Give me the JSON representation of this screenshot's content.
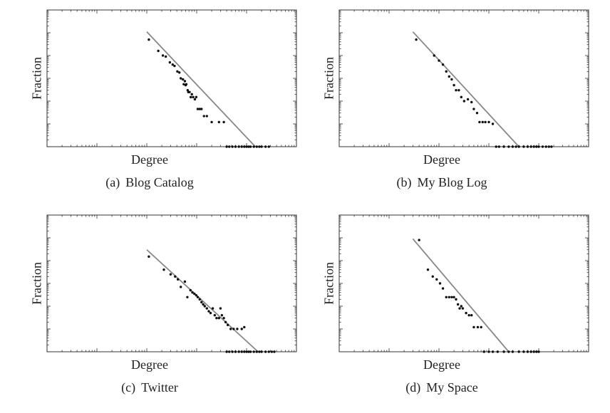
{
  "chart_data": [
    {
      "type": "scatter",
      "caption_tag": "(a)",
      "caption_name": "Blog Catalog",
      "xlabel": "Degree",
      "ylabel": "Fraction",
      "log_x": true,
      "log_y": true,
      "xlim": [
        0.1,
        10000
      ],
      "ylim": [
        1e-05,
        10
      ],
      "grid": false,
      "fit_line": {
        "x": [
          10,
          1500
        ],
        "y": [
          1.1,
          1e-05
        ]
      },
      "points": {
        "x": [
          11,
          17,
          21,
          24,
          29,
          33,
          36,
          41,
          45,
          48,
          53,
          55,
          58,
          60,
          62,
          66,
          68,
          72,
          76,
          80,
          85,
          92,
          98,
          105,
          115,
          125,
          140,
          160,
          200,
          280,
          350,
          400,
          450,
          520,
          600,
          700,
          800,
          900,
          1000,
          1100,
          1200,
          1400,
          1600,
          1800,
          2000,
          2400,
          2800
        ],
        "y": [
          0.5,
          0.16,
          0.1,
          0.09,
          0.05,
          0.04,
          0.035,
          0.02,
          0.018,
          0.01,
          0.009,
          0.0055,
          0.0075,
          0.005,
          0.0055,
          0.003,
          0.0025,
          0.0025,
          0.0015,
          0.002,
          0.0015,
          0.0012,
          0.0015,
          0.00045,
          0.00045,
          0.00045,
          0.00022,
          0.00022,
          0.00012,
          0.00012,
          0.00012,
          1e-05,
          1e-05,
          1e-05,
          1e-05,
          1e-05,
          1e-05,
          1e-05,
          1e-05,
          1e-05,
          1e-05,
          1e-05,
          1e-05,
          1e-05,
          1e-05,
          1e-05,
          1e-05
        ]
      }
    },
    {
      "type": "scatter",
      "caption_tag": "(b)",
      "caption_name": "My Blog Log",
      "xlabel": "Degree",
      "ylabel": "Fraction",
      "log_x": true,
      "log_y": true,
      "xlim": [
        0.1,
        10000
      ],
      "ylim": [
        1e-05,
        10
      ],
      "grid": false,
      "fit_line": {
        "x": [
          3,
          400
        ],
        "y": [
          1.1,
          1e-05
        ]
      },
      "points": {
        "x": [
          3.5,
          8,
          10,
          12,
          14,
          16,
          18,
          20,
          22,
          25,
          28,
          32,
          38,
          45,
          50,
          58,
          65,
          75,
          85,
          100,
          120,
          140,
          160,
          200,
          250,
          300,
          350,
          400,
          500,
          600,
          700,
          800,
          900,
          1000,
          1200,
          1400,
          1600,
          1800
        ],
        "y": [
          0.5,
          0.1,
          0.06,
          0.04,
          0.02,
          0.012,
          0.009,
          0.005,
          0.003,
          0.003,
          0.0015,
          0.001,
          0.0012,
          0.0009,
          0.00045,
          0.0003,
          0.00012,
          0.00012,
          0.00012,
          0.00012,
          0.0001,
          1e-05,
          1e-05,
          1e-05,
          1e-05,
          1e-05,
          1e-05,
          1e-05,
          1e-05,
          1e-05,
          1e-05,
          1e-05,
          1e-05,
          1e-05,
          1e-05,
          1e-05,
          1e-05,
          1e-05
        ]
      }
    },
    {
      "type": "scatter",
      "caption_tag": "(c)",
      "caption_name": "Twitter",
      "xlabel": "Degree",
      "ylabel": "Fraction",
      "log_x": true,
      "log_y": true,
      "xlim": [
        0.1,
        10000
      ],
      "ylim": [
        1e-05,
        10
      ],
      "grid": false,
      "fit_line": {
        "x": [
          10,
          1700
        ],
        "y": [
          0.3,
          1e-05
        ]
      },
      "points": {
        "x": [
          11,
          22,
          30,
          37,
          42,
          48,
          58,
          65,
          75,
          82,
          90,
          98,
          105,
          115,
          125,
          135,
          145,
          160,
          175,
          190,
          210,
          230,
          250,
          280,
          300,
          320,
          350,
          380,
          420,
          480,
          550,
          650,
          800,
          900,
          400,
          450,
          520,
          600,
          700,
          800,
          900,
          1000,
          1100,
          1200,
          1400,
          1600,
          1800,
          2000,
          2400,
          2800,
          3200,
          3600
        ],
        "y": [
          0.15,
          0.04,
          0.025,
          0.02,
          0.015,
          0.007,
          0.012,
          0.0025,
          0.005,
          0.004,
          0.0035,
          0.003,
          0.0025,
          0.002,
          0.0015,
          0.0012,
          0.001,
          0.0008,
          0.0006,
          0.0005,
          0.0008,
          0.0004,
          0.0003,
          0.0003,
          0.0008,
          0.0004,
          0.0003,
          0.0002,
          0.00015,
          0.0001,
          0.0001,
          0.0001,
          0.0001,
          0.00012,
          1e-05,
          1e-05,
          1e-05,
          1e-05,
          1e-05,
          1e-05,
          1e-05,
          1e-05,
          1e-05,
          1e-05,
          1e-05,
          1e-05,
          1e-05,
          1e-05,
          1e-05,
          1e-05,
          1e-05,
          1e-05
        ]
      }
    },
    {
      "type": "scatter",
      "caption_tag": "(d)",
      "caption_name": "My Space",
      "xlabel": "Degree",
      "ylabel": "Fraction",
      "log_x": true,
      "log_y": true,
      "xlim": [
        0.1,
        10000
      ],
      "ylim": [
        1e-05,
        10
      ],
      "grid": false,
      "fit_line": {
        "x": [
          3,
          250
        ],
        "y": [
          0.9,
          1e-05
        ]
      },
      "points": {
        "x": [
          4,
          6,
          7.5,
          9,
          10.5,
          12,
          14,
          16,
          18,
          20,
          22,
          24,
          26,
          28,
          30,
          35,
          40,
          45,
          50,
          60,
          70,
          80,
          100,
          120,
          150,
          200,
          250,
          300,
          400,
          500,
          600,
          700,
          800,
          900,
          1000
        ],
        "y": [
          0.8,
          0.04,
          0.02,
          0.015,
          0.01,
          0.006,
          0.0025,
          0.0025,
          0.0025,
          0.0025,
          0.002,
          0.0012,
          0.0008,
          0.001,
          0.0008,
          0.0005,
          0.0004,
          0.0004,
          0.00012,
          0.00012,
          0.00012,
          1e-05,
          1e-05,
          1e-05,
          1e-05,
          1e-05,
          1e-05,
          1e-05,
          1e-05,
          1e-05,
          1e-05,
          1e-05,
          1e-05,
          1e-05,
          1e-05
        ]
      }
    }
  ]
}
